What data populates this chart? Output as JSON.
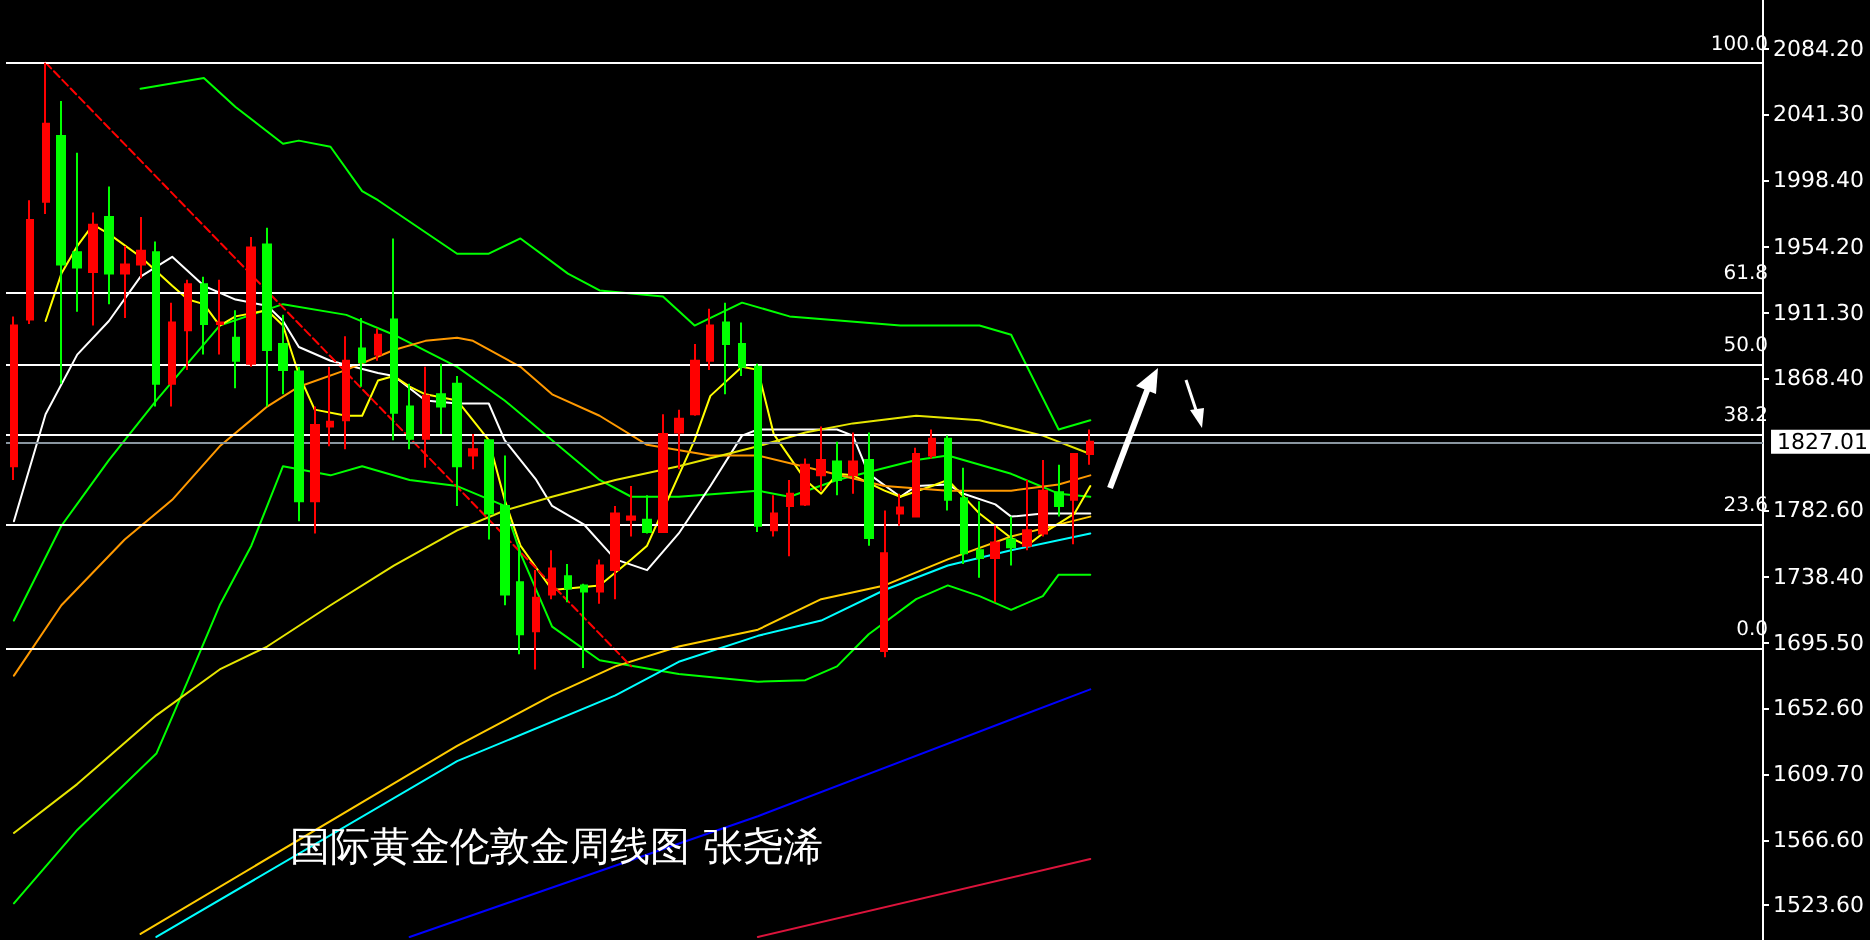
{
  "chart_data": {
    "type": "candlestick",
    "title": "国际黄金伦敦金周线图 张尧浠",
    "categories": [
      null,
      null,
      null,
      null,
      null,
      null,
      null,
      null,
      null,
      null,
      null,
      null,
      null,
      null,
      null,
      null,
      null,
      null,
      null,
      null,
      null,
      null,
      null,
      null,
      null,
      null,
      null,
      null,
      null,
      null,
      null,
      null,
      null,
      null,
      null,
      null,
      null,
      null,
      null,
      null,
      null,
      null,
      null,
      null,
      null,
      null,
      null,
      null,
      null,
      null,
      null,
      null,
      null,
      null,
      null,
      null,
      null,
      null,
      null,
      null,
      null,
      null,
      null,
      null,
      null,
      null,
      null,
      null,
      null
    ],
    "ohlc": [
      [
        1811,
        1909,
        1802,
        1903
      ],
      [
        1907,
        1985,
        1904,
        1972
      ],
      [
        1984,
        2075,
        1976,
        2035
      ],
      [
        2027,
        2050,
        1865,
        1943
      ],
      [
        1951,
        2016,
        1912,
        1941
      ],
      [
        1938,
        1977,
        1903,
        1969
      ],
      [
        1974,
        1994,
        1917,
        1937
      ],
      [
        1937,
        1955,
        1908,
        1943
      ],
      [
        1943,
        1974,
        1934,
        1952
      ],
      [
        1951,
        1958,
        1850,
        1865
      ],
      [
        1865,
        1918,
        1850,
        1905
      ],
      [
        1900,
        1933,
        1874,
        1930
      ],
      [
        1930,
        1935,
        1884,
        1904
      ],
      [
        1904,
        1933,
        1884,
        1905
      ],
      [
        1895,
        1913,
        1862,
        1880
      ],
      [
        1878,
        1961,
        1876,
        1954
      ],
      [
        1956,
        1967,
        1850,
        1887
      ],
      [
        1891,
        1910,
        1858,
        1874
      ],
      [
        1873,
        1876,
        1775,
        1788
      ],
      [
        1788,
        1850,
        1767,
        1838
      ],
      [
        1837,
        1876,
        1824,
        1840
      ],
      [
        1841,
        1896,
        1822,
        1880
      ],
      [
        1888,
        1908,
        1863,
        1879
      ],
      [
        1884,
        1901,
        1880,
        1897
      ],
      [
        1907,
        1960,
        1828,
        1846
      ],
      [
        1850,
        1865,
        1822,
        1829
      ],
      [
        1829,
        1876,
        1810,
        1857
      ],
      [
        1858,
        1878,
        1832,
        1850
      ],
      [
        1865,
        1870,
        1785,
        1811
      ],
      [
        1818,
        1832,
        1809,
        1822
      ],
      [
        1828,
        1828,
        1763,
        1780
      ],
      [
        1785,
        1818,
        1720,
        1727
      ],
      [
        1735,
        1760,
        1688,
        1701
      ],
      [
        1703,
        1743,
        1678,
        1725
      ],
      [
        1727,
        1756,
        1724,
        1744
      ],
      [
        1739,
        1747,
        1722,
        1731
      ],
      [
        1733,
        1734,
        1679,
        1729
      ],
      [
        1729,
        1750,
        1721,
        1746
      ],
      [
        1743,
        1785,
        1724,
        1780
      ],
      [
        1776,
        1798,
        1765,
        1778
      ],
      [
        1776,
        1792,
        1767,
        1768
      ],
      [
        1768,
        1845,
        1768,
        1832
      ],
      [
        1833,
        1848,
        1809,
        1842
      ],
      [
        1845,
        1891,
        1844,
        1880
      ],
      [
        1880,
        1914,
        1874,
        1903
      ],
      [
        1905,
        1918,
        1858,
        1891
      ],
      [
        1891,
        1905,
        1870,
        1876
      ],
      [
        1876,
        1878,
        1768,
        1772
      ],
      [
        1769,
        1792,
        1765,
        1780
      ],
      [
        1785,
        1802,
        1752,
        1793
      ],
      [
        1786,
        1816,
        1785,
        1812
      ],
      [
        1805,
        1837,
        1795,
        1815
      ],
      [
        1814,
        1827,
        1792,
        1802
      ],
      [
        1805,
        1833,
        1793,
        1814
      ],
      [
        1815,
        1833,
        1759,
        1764
      ],
      [
        1690,
        1782,
        1686,
        1754
      ],
      [
        1780,
        1793,
        1772,
        1784
      ],
      [
        1778,
        1823,
        1778,
        1819
      ],
      [
        1818,
        1835,
        1816,
        1829
      ],
      [
        1829,
        1831,
        1782,
        1789
      ],
      [
        1790,
        1810,
        1747,
        1754
      ],
      [
        1756,
        1788,
        1738,
        1751
      ],
      [
        1751,
        1772,
        1722,
        1761
      ],
      [
        1763,
        1778,
        1746,
        1758
      ],
      [
        1759,
        1802,
        1756,
        1769
      ],
      [
        1767,
        1815,
        1765,
        1795
      ],
      [
        1794,
        1812,
        1778,
        1785
      ],
      [
        1789,
        1819,
        1760,
        1819
      ],
      [
        1819,
        1835,
        1812,
        1827
      ]
    ],
    "colors": [
      "#ff0000",
      "#ff0000",
      "#ff0000",
      "#00ff00",
      "#00ff00",
      "#ff0000",
      "#00ff00",
      "#ff0000",
      "#ff0000",
      "#00ff00",
      "#ff0000",
      "#ff0000",
      "#00ff00",
      "#ff0000",
      "#00ff00",
      "#ff0000",
      "#00ff00",
      "#00ff00",
      "#00ff00",
      "#ff0000",
      "#ff0000",
      "#ff0000",
      "#00ff00",
      "#ff0000",
      "#00ff00",
      "#00ff00",
      "#ff0000",
      "#00ff00",
      "#00ff00",
      "#ff0000",
      "#00ff00",
      "#00ff00",
      "#00ff00",
      "#ff0000",
      "#ff0000",
      "#00ff00",
      "#00ff00",
      "#ff0000",
      "#ff0000",
      "#ff0000",
      "#00ff00",
      "#ff0000",
      "#ff0000",
      "#ff0000",
      "#ff0000",
      "#00ff00",
      "#00ff00",
      "#00ff00",
      "#ff0000",
      "#ff0000",
      "#ff0000",
      "#ff0000",
      "#00ff00",
      "#ff0000",
      "#00ff00",
      "#ff0000",
      "#ff0000",
      "#ff0000",
      "#ff0000",
      "#00ff00",
      "#00ff00",
      "#00ff00",
      "#ff0000",
      "#00ff00",
      "#ff0000",
      "#ff0000",
      "#00ff00",
      "#ff0000",
      "#ff0000"
    ],
    "series": [
      {
        "type": "line",
        "color": "#00ff00",
        "values": [
          null,
          null,
          null,
          null,
          null,
          null,
          null,
          null,
          2058,
          null,
          null,
          null,
          2065,
          null,
          2046,
          null,
          null,
          2022,
          2024,
          null,
          2020,
          null,
          1991,
          1985,
          null,
          null,
          null,
          null,
          1950,
          null,
          1950,
          null,
          1960,
          null,
          null,
          1937,
          null,
          1926,
          null,
          null,
          null,
          1922,
          null,
          1903,
          null,
          null,
          1918,
          null,
          null,
          1909,
          null,
          null,
          null,
          null,
          null,
          null,
          1903,
          null,
          null,
          null,
          null,
          1903,
          null,
          1897,
          null,
          null,
          1835,
          null,
          1841
        ]
      },
      {
        "type": "line",
        "color": "#00ff00",
        "values": [
          1710,
          null,
          null,
          1772,
          null,
          null,
          1815,
          null,
          null,
          1854,
          null,
          null,
          null,
          1903,
          null,
          null,
          null,
          1917,
          null,
          null,
          null,
          1910,
          null,
          null,
          1897,
          null,
          null,
          null,
          1876,
          null,
          null,
          1854,
          null,
          null,
          1828,
          null,
          null,
          1802,
          null,
          1791,
          null,
          null,
          1791,
          null,
          null,
          null,
          null,
          1795,
          null,
          1791,
          null,
          null,
          1802,
          null,
          null,
          null,
          null,
          1815,
          null,
          1818,
          null,
          null,
          null,
          1806,
          null,
          null,
          1793,
          null,
          1791
        ]
      },
      {
        "type": "line",
        "color": "#00ff00",
        "values": [
          1525,
          null,
          null,
          null,
          1573,
          null,
          null,
          null,
          null,
          1623,
          null,
          1671,
          null,
          1720,
          null,
          1759,
          null,
          1811,
          null,
          null,
          1805,
          null,
          1811,
          null,
          null,
          1802,
          null,
          null,
          1798,
          null,
          null,
          1785,
          1754,
          null,
          1706,
          null,
          null,
          1684,
          null,
          null,
          null,
          null,
          1675,
          null,
          null,
          null,
          null,
          1670,
          null,
          null,
          1671,
          null,
          1680,
          null,
          1701,
          null,
          null,
          1724,
          null,
          1733,
          null,
          1726,
          null,
          1717,
          null,
          1726,
          1740,
          null,
          1740
        ]
      },
      {
        "type": "line",
        "color": "#ffffff",
        "values": [
          1775,
          null,
          1845,
          null,
          1884,
          null,
          1906,
          null,
          1935,
          null,
          1948,
          null,
          1929,
          null,
          1920,
          null,
          1916,
          1906,
          1889,
          null,
          1880,
          null,
          null,
          1872,
          1870,
          null,
          1854,
          null,
          1852,
          null,
          1852,
          1828,
          null,
          1802,
          1785,
          null,
          1773,
          null,
          1750,
          null,
          1743,
          null,
          1767,
          null,
          1798,
          null,
          1831,
          1835,
          null,
          null,
          null,
          null,
          1835,
          1831,
          1806,
          null,
          1791,
          1798,
          null,
          1799,
          1793,
          null,
          1786,
          1778,
          null,
          1780,
          null,
          null,
          1780
        ]
      },
      {
        "type": "line",
        "color": "#ffff00",
        "values": [
          null,
          null,
          1906,
          1937,
          1955,
          1969,
          1963,
          null,
          1948,
          null,
          1929,
          1920,
          1917,
          1903,
          1909,
          null,
          1913,
          1903,
          1871,
          1848,
          null,
          1844,
          1844,
          1867,
          1870,
          1863,
          1858,
          null,
          1854,
          null,
          1828,
          1789,
          1759,
          null,
          1730,
          null,
          null,
          1733,
          null,
          1750,
          1759,
          null,
          null,
          1828,
          1857,
          null,
          1876,
          1874,
          1832,
          null,
          1802,
          1793,
          1806,
          1805,
          null,
          1795,
          1791,
          null,
          1798,
          1802,
          null,
          1780,
          null,
          1764,
          1759,
          1767,
          null,
          1780,
          1798
        ]
      },
      {
        "type": "line",
        "color": "#ff9900",
        "values": [
          1674,
          null,
          null,
          1720,
          null,
          null,
          null,
          1763,
          null,
          null,
          1789,
          null,
          null,
          1824,
          null,
          null,
          1850,
          null,
          1863,
          null,
          null,
          1874,
          null,
          null,
          1887,
          null,
          1893,
          null,
          1895,
          1893,
          null,
          null,
          1876,
          null,
          1858,
          null,
          null,
          1844,
          null,
          null,
          1825,
          null,
          null,
          null,
          1818,
          null,
          null,
          1818,
          null,
          null,
          null,
          1808,
          null,
          null,
          null,
          1798,
          null,
          null,
          null,
          1795,
          null,
          null,
          null,
          1795,
          null,
          null,
          1799,
          null,
          1805
        ]
      },
      {
        "type": "line",
        "color": "#e6e600",
        "values": [
          1571,
          null,
          null,
          null,
          1603,
          null,
          null,
          null,
          null,
          1648,
          null,
          null,
          null,
          1678,
          null,
          null,
          1693,
          null,
          null,
          null,
          1720,
          null,
          null,
          null,
          1746,
          null,
          null,
          null,
          1769,
          null,
          null,
          1782,
          null,
          null,
          1791,
          null,
          null,
          null,
          1802,
          null,
          null,
          null,
          1811,
          null,
          null,
          null,
          null,
          1824,
          null,
          null,
          1833,
          null,
          null,
          1839,
          null,
          null,
          null,
          1844,
          null,
          null,
          null,
          1841,
          null,
          null,
          null,
          1831,
          null,
          null,
          1819
        ]
      },
      {
        "type": "line",
        "color": "#ffcc00",
        "values": [
          null,
          null,
          null,
          null,
          null,
          null,
          null,
          null,
          1505,
          null,
          null,
          null,
          null,
          null,
          null,
          null,
          null,
          null,
          null,
          null,
          null,
          null,
          null,
          null,
          null,
          null,
          null,
          null,
          1628,
          null,
          null,
          null,
          null,
          null,
          1661,
          null,
          null,
          null,
          1680,
          null,
          null,
          null,
          1693,
          null,
          null,
          null,
          null,
          1704,
          null,
          null,
          null,
          1724,
          null,
          null,
          null,
          1733,
          null,
          null,
          null,
          1750,
          null,
          null,
          null,
          1765,
          null,
          null,
          null,
          null,
          1778
        ]
      },
      {
        "type": "line",
        "color": "#00ffff",
        "values": [
          null,
          null,
          null,
          null,
          null,
          null,
          null,
          null,
          null,
          1503,
          null,
          null,
          null,
          null,
          null,
          null,
          null,
          null,
          null,
          null,
          null,
          null,
          null,
          null,
          null,
          null,
          null,
          null,
          1618,
          null,
          null,
          null,
          null,
          null,
          null,
          null,
          null,
          null,
          1661,
          null,
          null,
          null,
          1683,
          null,
          null,
          null,
          null,
          1700,
          null,
          null,
          null,
          1710,
          null,
          null,
          null,
          1730,
          null,
          null,
          null,
          1746,
          null,
          null,
          null,
          1756,
          null,
          null,
          null,
          null,
          1767
        ]
      },
      {
        "type": "line",
        "color": "#0000ff",
        "values": [
          null,
          null,
          null,
          null,
          null,
          null,
          null,
          null,
          null,
          null,
          null,
          null,
          null,
          null,
          null,
          null,
          null,
          null,
          null,
          null,
          null,
          null,
          null,
          null,
          null,
          1503,
          null,
          null,
          null,
          null,
          null,
          null,
          null,
          null,
          null,
          null,
          null,
          null,
          null,
          null,
          null,
          null,
          null,
          null,
          null,
          null,
          null,
          1582,
          null,
          null,
          null,
          null,
          null,
          null,
          null,
          null,
          null,
          null,
          null,
          null,
          null,
          null,
          null,
          null,
          null,
          null,
          null,
          null,
          1665
        ]
      },
      {
        "type": "line",
        "color": "#dc143c",
        "values": [
          null,
          null,
          null,
          null,
          null,
          null,
          null,
          null,
          null,
          null,
          null,
          null,
          null,
          null,
          null,
          null,
          null,
          null,
          null,
          null,
          null,
          null,
          null,
          null,
          null,
          null,
          null,
          null,
          null,
          null,
          null,
          null,
          null,
          null,
          null,
          null,
          null,
          null,
          null,
          null,
          null,
          null,
          null,
          null,
          null,
          null,
          null,
          1503,
          null,
          null,
          null,
          null,
          null,
          null,
          null,
          null,
          null,
          null,
          null,
          null,
          null,
          null,
          null,
          null,
          null,
          null,
          null,
          null,
          1554
        ]
      },
      {
        "type": "line",
        "color": "#ff0000",
        "line_style": "dashed",
        "values": [
          null,
          null,
          2075,
          null,
          null,
          null,
          null,
          null,
          null,
          null,
          null,
          null,
          null,
          null,
          null,
          null,
          null,
          null,
          null,
          null,
          null,
          null,
          null,
          null,
          null,
          null,
          null,
          null,
          null,
          null,
          null,
          null,
          null,
          null,
          null,
          null,
          null,
          null,
          null,
          1680,
          null,
          null,
          null,
          null,
          null,
          null,
          null,
          null,
          null,
          null,
          null,
          null,
          null,
          null,
          null,
          null,
          null,
          null,
          null,
          null,
          null,
          null,
          null,
          null,
          null,
          null,
          null,
          null,
          null
        ]
      }
    ],
    "ref_lines": [
      {
        "axis": "y",
        "value": 2075,
        "color": "#ffffff"
      },
      {
        "axis": "y",
        "value": 1925,
        "color": "#ffffff"
      },
      {
        "axis": "y",
        "value": 1878,
        "color": "#ffffff"
      },
      {
        "axis": "y",
        "value": 1832,
        "color": "#ffffff"
      },
      {
        "axis": "y",
        "value": 1773,
        "color": "#ffffff"
      },
      {
        "axis": "y",
        "value": 1692,
        "color": "#ffffff"
      },
      {
        "axis": "y",
        "value": 1827.01,
        "label": "1827.01",
        "color": "#8a96a0"
      }
    ],
    "annotations": [
      {
        "text": "100.0",
        "y": 2075
      },
      {
        "text": "61.8",
        "y": 1925
      },
      {
        "text": "50.0",
        "y": 1878
      },
      {
        "text": "38.2",
        "y": 1832
      },
      {
        "text": "23.6",
        "y": 1773
      },
      {
        "text": "0.0",
        "y": 1692
      }
    ],
    "ylim": [
      1501,
      2116
    ],
    "yticks": [
      {
        "value": 2084.2,
        "label": "2084.20"
      },
      {
        "value": 2041.3,
        "label": "2041.30"
      },
      {
        "value": 1998.4,
        "label": "1998.40"
      },
      {
        "value": 1954.2,
        "label": "1954.20"
      },
      {
        "value": 1911.3,
        "label": "1911.30"
      },
      {
        "value": 1868.4,
        "label": "1868.40"
      },
      {
        "value": 1782.6,
        "label": "1782.60"
      },
      {
        "value": 1738.4,
        "label": "1738.40"
      },
      {
        "value": 1695.5,
        "label": "1695.50"
      },
      {
        "value": 1652.6,
        "label": "1652.60"
      },
      {
        "value": 1609.7,
        "label": "1609.70"
      },
      {
        "value": 1566.6,
        "label": "1566.60"
      },
      {
        "value": 1523.6,
        "label": "1523.60"
      }
    ],
    "tick_labels": "y",
    "grid": false,
    "line_style": "solid"
  }
}
